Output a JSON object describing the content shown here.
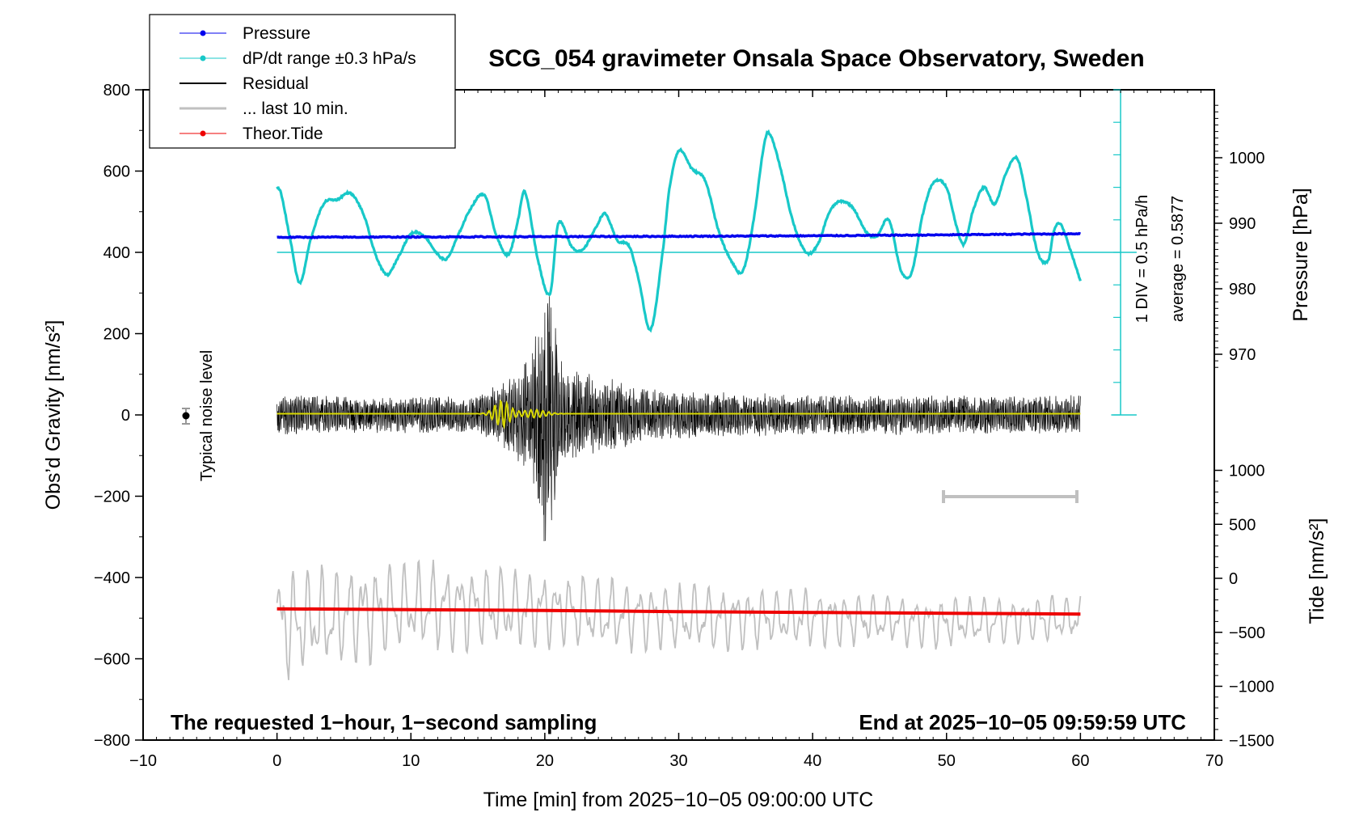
{
  "chart_data": {
    "type": "line",
    "title": "SCG_054 gravimeter Onsala Space Observatory, Sweden",
    "xlabel": "Time [min] from 2025−10−05 09:00:00 UTC",
    "ylabel_left": "Obs’d Gravity [nm/s²]",
    "ylabel_right_top": "Pressure [hPa]",
    "ylabel_right_bottom": "Tide [nm/s²]",
    "xlim": [
      -10,
      70
    ],
    "ylim_left": [
      -800,
      800
    ],
    "x_ticks": [
      "−10",
      "0",
      "10",
      "20",
      "30",
      "40",
      "50",
      "60",
      "70"
    ],
    "y_ticks_left": [
      "800",
      "600",
      "400",
      "200",
      "0",
      "−200",
      "−400",
      "−600",
      "−800"
    ],
    "y_ticks_pressure": [
      "1000",
      "990",
      "980",
      "970"
    ],
    "y_ticks_tide": [
      "1000",
      "500",
      "0",
      "−500",
      "−1000",
      "−1500"
    ],
    "legend": {
      "placement": "top-left",
      "entries": [
        "Pressure",
        "dP/dt range ±0.3 hPa/s",
        "Residual",
        "... last 10 min.",
        "Theor.Tide"
      ]
    },
    "annotations": {
      "noise": "Typical noise level",
      "pressure_div": "1 DIV = 0.5 hPa/h",
      "pressure_average": "average = 0.5877",
      "footer_left": "The requested 1−hour, 1−second sampling",
      "footer_right": "End at 2025−10−05 09:59:59 UTC"
    },
    "colors": {
      "pressure": "#0000ee",
      "dpdt": "#18c8c8",
      "residual": "#000000",
      "last10": "#c0c0c0",
      "tide": "#ee0000",
      "model": "#d8d800"
    },
    "series": [
      {
        "name": "Pressure",
        "x": [
          0,
          10,
          20,
          30,
          40,
          50,
          60
        ],
        "y": [
          437.0,
          437.8,
          438.5,
          439.5,
          440.8,
          443.0,
          446.0
        ]
      },
      {
        "name": "dP/dt range ±0.3 hPa/s",
        "x": [
          0,
          0.3,
          1,
          1.7,
          2.5,
          3.5,
          4.5,
          5.5,
          6.5,
          7.3,
          8.2,
          9,
          10,
          11,
          12,
          12.7,
          13.5,
          14.5,
          15.5,
          16.4,
          17.3,
          18,
          18.5,
          19.5,
          20.4,
          21,
          22,
          22.8,
          23.8,
          24.5,
          25.4,
          26.3,
          27,
          27.9,
          28.8,
          29.3,
          30,
          31,
          32,
          33,
          34,
          34.8,
          35.6,
          36.3,
          36.7,
          37.5,
          38.5,
          39.5,
          40.4,
          41.2,
          42,
          43,
          44,
          44.8,
          45.7,
          46.6,
          47.4,
          48.2,
          49,
          50,
          50.7,
          51.3,
          52,
          52.8,
          53.6,
          54.5,
          55.3,
          56,
          56.8,
          57.6,
          58,
          58.5,
          59.3,
          60
        ],
        "y": [
          560,
          545,
          430,
          325,
          430,
          520,
          530,
          545,
          490,
          400,
          345,
          385,
          445,
          440,
          395,
          385,
          440,
          510,
          540,
          440,
          395,
          480,
          550,
          380,
          300,
          470,
          415,
          405,
          460,
          495,
          430,
          415,
          335,
          210,
          400,
          555,
          650,
          605,
          575,
          450,
          375,
          355,
          480,
          650,
          695,
          620,
          480,
          400,
          420,
          495,
          525,
          510,
          450,
          440,
          480,
          355,
          350,
          490,
          570,
          560,
          470,
          420,
          505,
          560,
          520,
          600,
          630,
          530,
          400,
          380,
          450,
          470,
          400,
          330
        ]
      },
      {
        "name": "Residual",
        "x": [
          0,
          10,
          15,
          17,
          18,
          19,
          20,
          20.5,
          21,
          22,
          24,
          26,
          28,
          30,
          35,
          40,
          45,
          50,
          55,
          60
        ],
        "y": [
          50,
          45,
          45,
          90,
          120,
          180,
          360,
          330,
          150,
          120,
          100,
          80,
          65,
          60,
          55,
          50,
          50,
          50,
          48,
          50
        ]
      },
      {
        "name": "... last 10 min.",
        "x": [
          0,
          10,
          20,
          30,
          40,
          50,
          60
        ],
        "y": [
          -520,
          -470,
          -480,
          -500,
          -500,
          -510,
          -500
        ]
      },
      {
        "name": "Theor.Tide",
        "x": [
          0,
          10,
          20,
          30,
          40,
          50,
          60
        ],
        "y": [
          -477,
          -479,
          -481,
          -484,
          -486,
          -488,
          -490
        ]
      }
    ]
  }
}
